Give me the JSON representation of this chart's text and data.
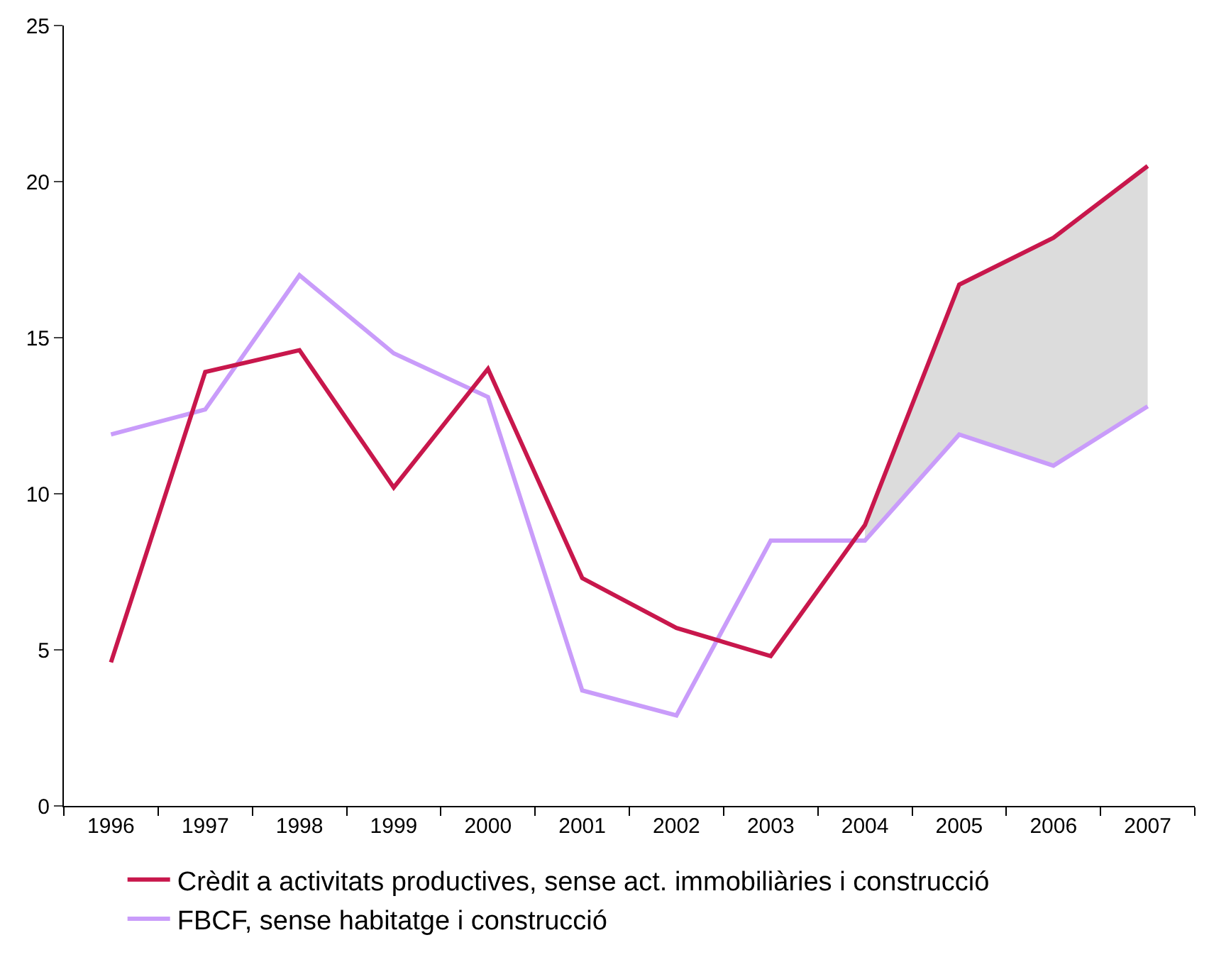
{
  "chart_data": {
    "type": "line",
    "categories": [
      "1996",
      "1997",
      "1998",
      "1999",
      "2000",
      "2001",
      "2002",
      "2003",
      "2004",
      "2005",
      "2006",
      "2007"
    ],
    "series": [
      {
        "name": "Crèdit a activitats productives, sense act. immobiliàries i construcció",
        "color": "#c8174c",
        "values": [
          4.6,
          13.9,
          14.6,
          10.2,
          14.0,
          7.3,
          5.7,
          4.8,
          9.0,
          16.7,
          18.2,
          20.5
        ],
        "lower": [
          null,
          null,
          null,
          null,
          null,
          null,
          null,
          null,
          8.5,
          11.9,
          10.9,
          12.8
        ],
        "upper": [
          null,
          null,
          null,
          null,
          null,
          null,
          null,
          null,
          9.0,
          16.7,
          18.2,
          20.5
        ]
      },
      {
        "name": "FBCF, sense habitatge i construcció",
        "color": "#c99cfa",
        "values": [
          11.9,
          12.7,
          17.0,
          14.5,
          13.1,
          3.7,
          2.9,
          8.5,
          8.5,
          11.9,
          10.9,
          12.8
        ]
      }
    ],
    "ylim": [
      0,
      25
    ],
    "yticks": [
      0,
      5,
      10,
      15,
      20,
      25
    ],
    "legend": "bottom",
    "marker": "none",
    "line_style": "solid"
  }
}
